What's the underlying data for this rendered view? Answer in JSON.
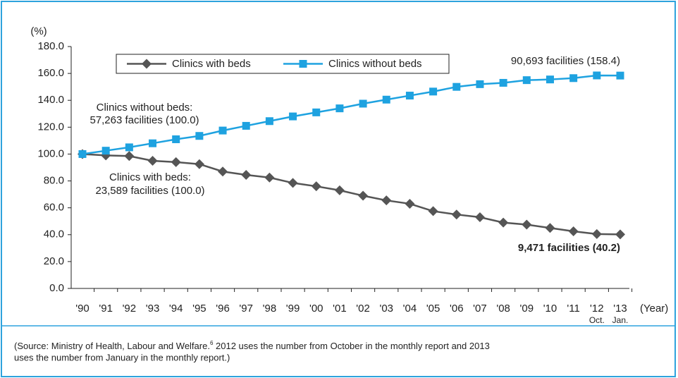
{
  "chart_data": {
    "type": "line",
    "y_axis_label": "(%)",
    "x_axis_label": "(Year)",
    "categories": [
      "'90",
      "'91",
      "'92",
      "'93",
      "'94",
      "'95",
      "'96",
      "'97",
      "'98",
      "'99",
      "'00",
      "'01",
      "'02",
      "'03",
      "'04",
      "'05",
      "'06",
      "'07",
      "'08",
      "'09",
      "'10",
      "'11",
      "'12",
      "'13"
    ],
    "category_notes": [
      null,
      null,
      null,
      null,
      null,
      null,
      null,
      null,
      null,
      null,
      null,
      null,
      null,
      null,
      null,
      null,
      null,
      null,
      null,
      null,
      null,
      null,
      "Oct.",
      "Jan."
    ],
    "series": [
      {
        "name": "Clinics with beds",
        "color": "#555555",
        "marker": "diamond",
        "values": [
          100,
          99,
          98.5,
          95,
          94,
          92.5,
          87,
          84.5,
          82.5,
          78.5,
          76,
          73,
          69,
          65.5,
          63,
          57.5,
          55,
          53,
          49,
          47.5,
          45,
          42.5,
          40.5,
          40.2
        ]
      },
      {
        "name": "Clinics without beds",
        "color": "#1ea2e0",
        "marker": "square",
        "values": [
          100,
          102.5,
          105,
          108,
          111,
          113.5,
          117.5,
          121,
          124.5,
          128,
          131,
          134,
          137.5,
          140.5,
          143.5,
          146.5,
          150,
          152,
          153,
          155,
          155.5,
          156.5,
          158.5,
          158.4
        ]
      }
    ],
    "ylim": [
      0,
      180
    ],
    "yticks": [
      {
        "value": 0,
        "label": "0.0"
      },
      {
        "value": 20,
        "label": "20.0"
      },
      {
        "value": 40,
        "label": "40.0"
      },
      {
        "value": 60,
        "label": "60.0"
      },
      {
        "value": 80,
        "label": "80.0"
      },
      {
        "value": 100,
        "label": "100.0"
      },
      {
        "value": 120,
        "label": "120.0"
      },
      {
        "value": 140,
        "label": "140.0"
      },
      {
        "value": 160,
        "label": "160.0"
      },
      {
        "value": 180,
        "label": "180.0"
      }
    ],
    "legend": "top",
    "annotations": [
      "Clinics without beds:",
      "57,263 facilities (100.0)",
      "Clinics with beds:",
      "23,589 facilities (100.0)",
      "90,693 facilities (158.4)",
      "9,471 facilities (40.2)"
    ],
    "source": [
      "(Source: Ministry of Health, Labour and Welfare.",
      "6",
      " 2012 uses the number from October in the monthly report and 2013",
      "uses the number from January in the monthly report.)"
    ]
  }
}
